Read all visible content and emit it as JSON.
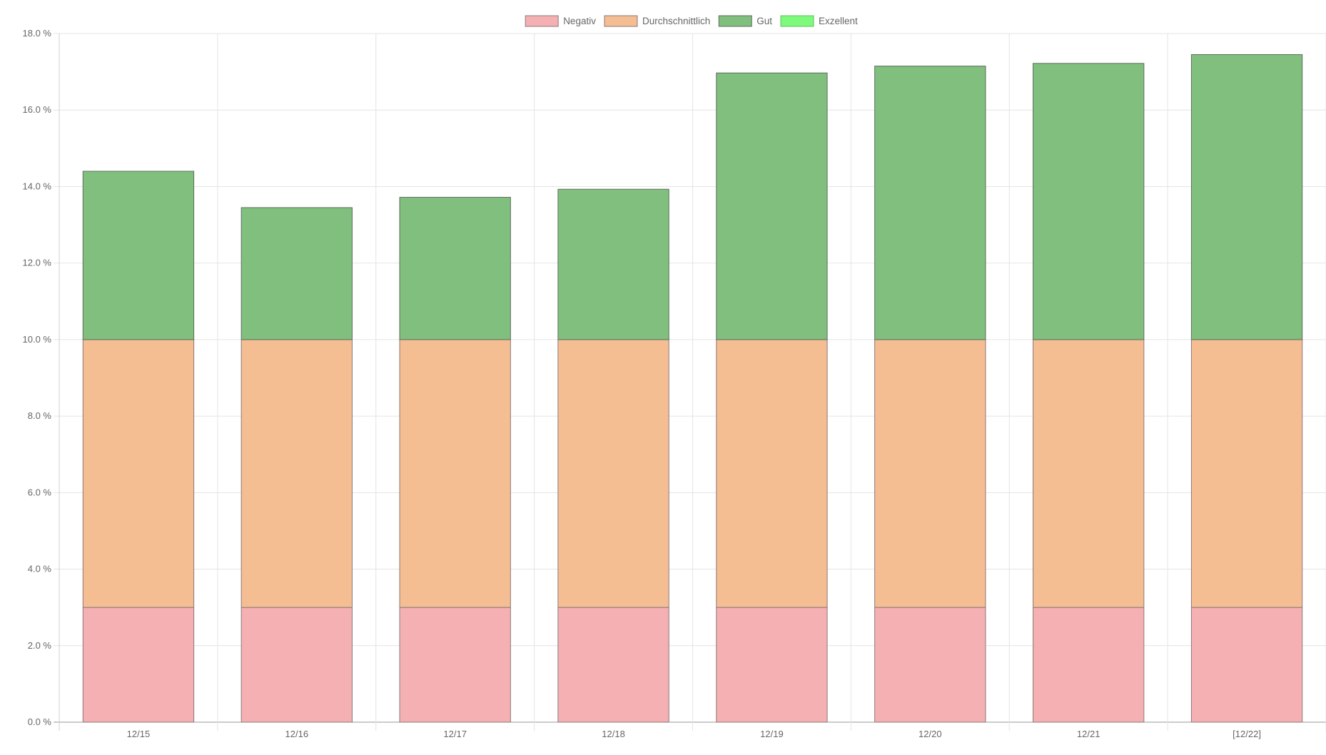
{
  "chart_data": {
    "type": "bar",
    "stacked": true,
    "categories": [
      "12/15",
      "12/16",
      "12/17",
      "12/18",
      "12/19",
      "12/20",
      "12/21",
      "[12/22]"
    ],
    "series": [
      {
        "name": "Negativ",
        "values": [
          3.0,
          3.0,
          3.0,
          3.0,
          3.0,
          3.0,
          3.0,
          3.0
        ],
        "fill": "#f4b0b2",
        "stroke": "#8c7a7a"
      },
      {
        "name": "Durchschnittlich",
        "values": [
          7.0,
          7.0,
          7.0,
          7.0,
          7.0,
          7.0,
          7.0,
          7.0
        ],
        "fill": "#f5bd92",
        "stroke": "#8c7a7a"
      },
      {
        "name": "Gut",
        "values": [
          4.4,
          3.45,
          3.72,
          3.93,
          6.97,
          7.15,
          7.22,
          7.45
        ],
        "fill": "#80bf7e",
        "stroke": "#5d6f5d"
      },
      {
        "name": "Exzellent",
        "values": [
          0,
          0,
          0,
          0,
          0,
          0,
          0,
          0
        ],
        "fill": "#7df97b",
        "stroke": "#5fbf5e"
      }
    ],
    "ylim": [
      0,
      18
    ],
    "yticks": [
      "0.0 %",
      "2.0 %",
      "4.0 %",
      "6.0 %",
      "8.0 %",
      "10.0 %",
      "12.0 %",
      "14.0 %",
      "16.0 %",
      "18.0 %"
    ],
    "grid": true,
    "legend_position": "top-center"
  }
}
